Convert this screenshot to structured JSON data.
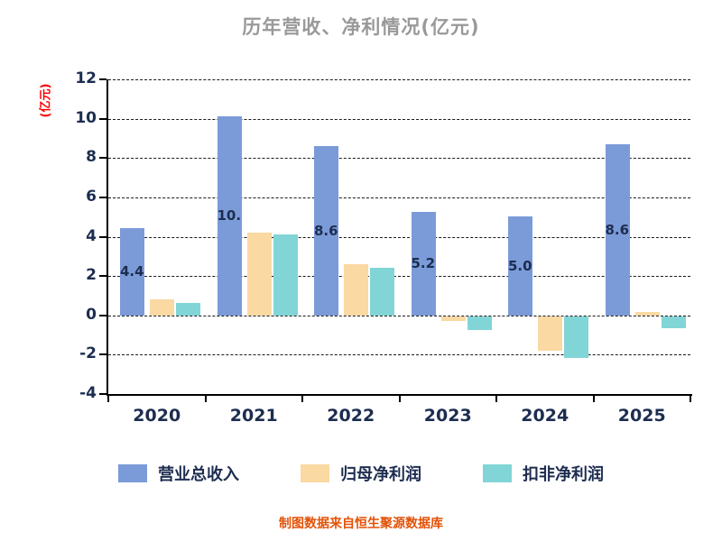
{
  "title": "历年营收、净利情况(亿元)",
  "y_axis_label": "(亿元)",
  "footer": "制图数据来自恒生聚源数据库",
  "colors": {
    "title": "#999999",
    "y_axis_label": "#ff0000",
    "footer": "#e25208",
    "axis": "#000000",
    "axis_text": "#1d2d50",
    "revenue": "#7b9bd8",
    "net_profit": "#fad9a3",
    "non_recurring_net_profit": "#82d5d6"
  },
  "chart_data": {
    "type": "bar",
    "title": "历年营收、净利情况(亿元)",
    "xlabel": "",
    "ylabel": "(亿元)",
    "categories": [
      "2020",
      "2021",
      "2022",
      "2023",
      "2024",
      "2025"
    ],
    "series": [
      {
        "key": "revenue",
        "name": "营业总收入",
        "color": "#7b9bd8",
        "values": [
          4.44,
          10.13,
          8.62,
          5.25,
          5.04,
          8.69
        ],
        "labels": [
          "4.44",
          "10.13",
          "8.62",
          "5.25",
          "5.04",
          "8.69"
        ]
      },
      {
        "key": "net-profit",
        "name": "归母净利润",
        "color": "#fad9a3",
        "values": [
          0.8,
          4.2,
          2.6,
          -0.25,
          -1.75,
          0.15
        ]
      },
      {
        "key": "non-recurring-net-profit",
        "name": "扣非净利润",
        "color": "#82d5d6",
        "values": [
          0.65,
          4.1,
          2.4,
          -0.7,
          -2.1,
          -0.6
        ]
      }
    ],
    "ylim": [
      -4,
      12
    ],
    "yticks": [
      12,
      10,
      8,
      6,
      4,
      2,
      0,
      -2,
      -4
    ],
    "grid": true,
    "grid_style": "dashed",
    "legend_position": "bottom"
  }
}
